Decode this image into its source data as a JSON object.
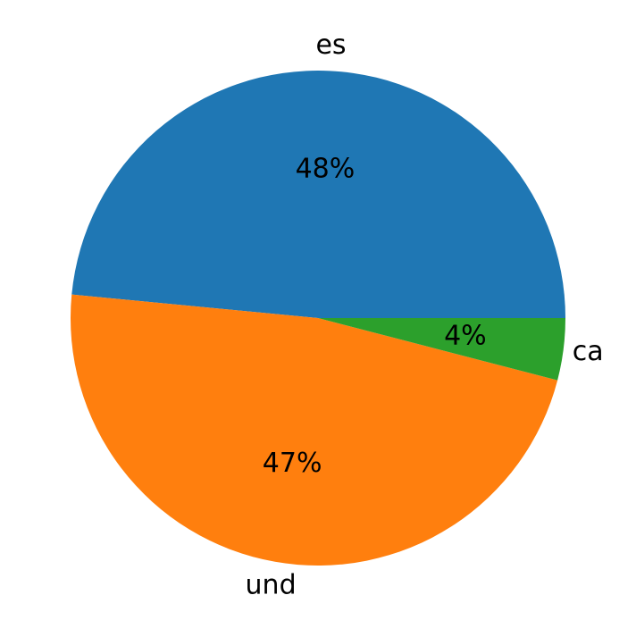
{
  "chart_data": {
    "type": "pie",
    "categories": [
      "es",
      "und",
      "ca"
    ],
    "values": [
      48,
      47,
      4
    ],
    "value_labels": [
      "48%",
      "47%",
      "4%"
    ],
    "colors": [
      "#1f77b4",
      "#ff7f0e",
      "#2ca02c"
    ]
  }
}
